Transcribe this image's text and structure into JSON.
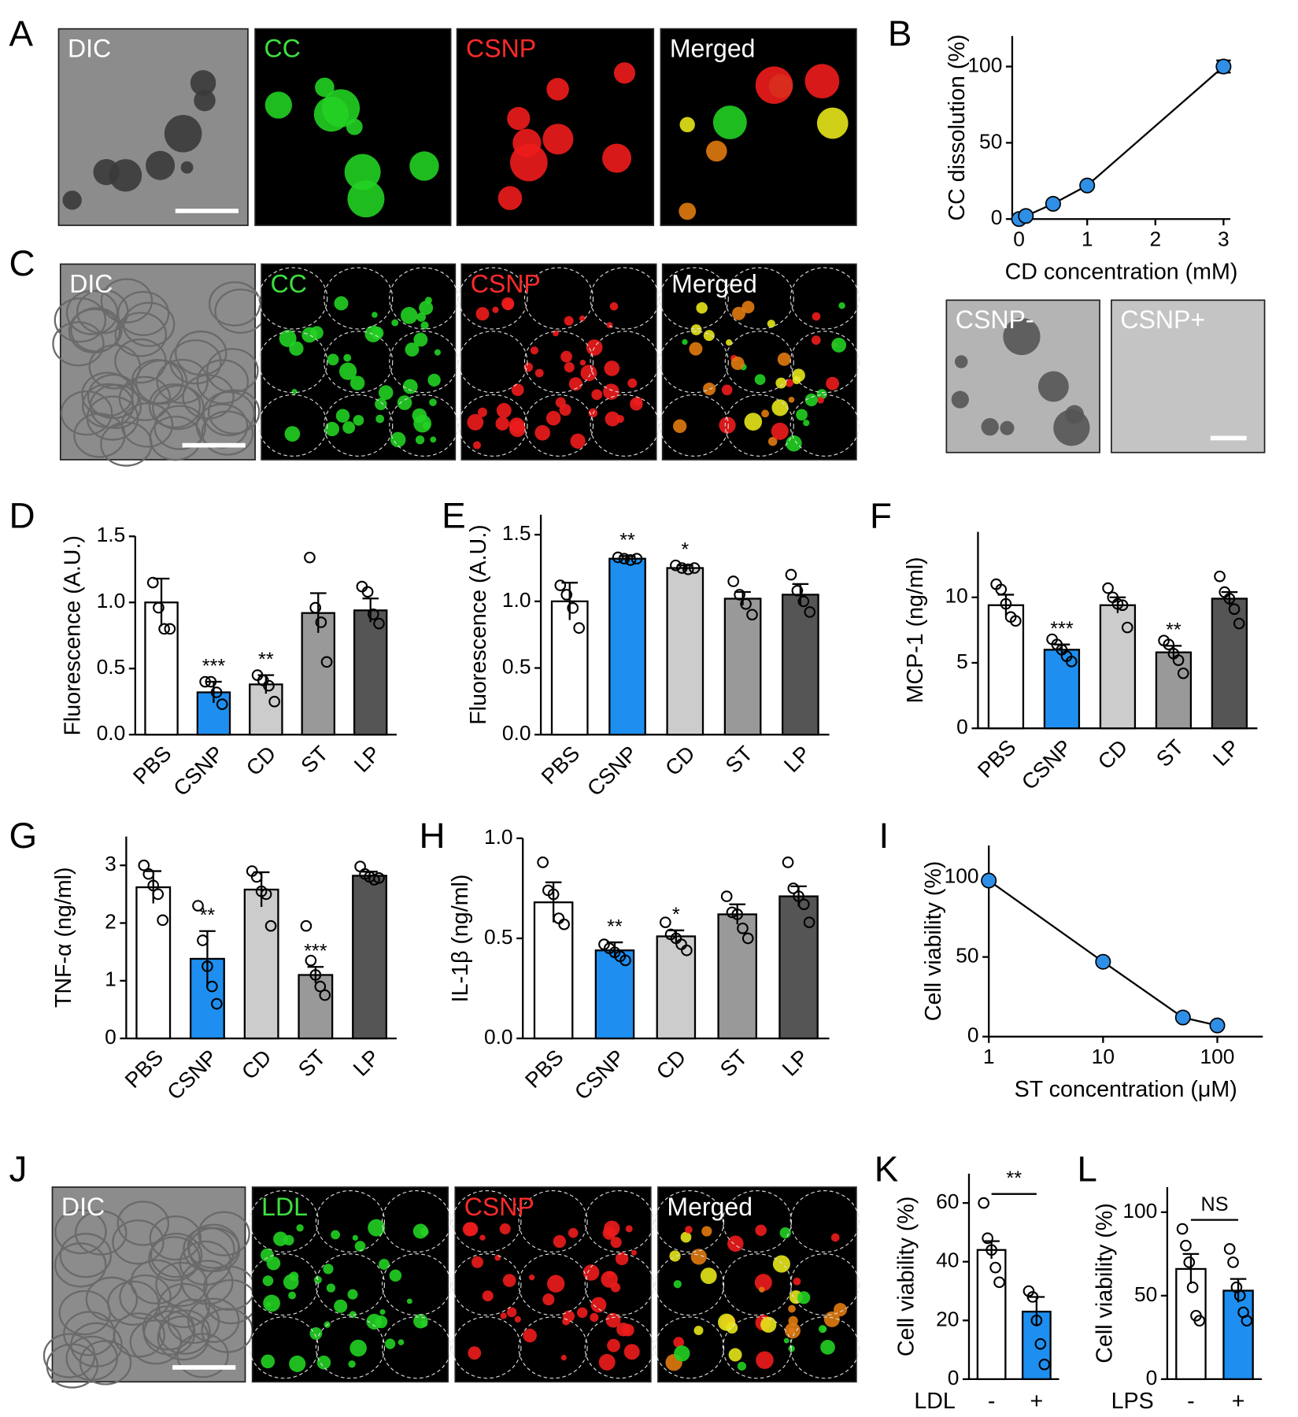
{
  "panel_labels": [
    "A",
    "B",
    "C",
    "D",
    "E",
    "F",
    "G",
    "H",
    "I",
    "J",
    "K",
    "L"
  ],
  "images": {
    "A": [
      "DIC",
      "CC",
      "CSNP",
      "Merged"
    ],
    "B": [
      "CSNP-",
      "CSNP+"
    ],
    "C": [
      "DIC",
      "CC",
      "CSNP",
      "Merged"
    ],
    "J": [
      "DIC",
      "LDL",
      "CSNP",
      "Merged"
    ]
  },
  "chart_data": [
    {
      "type": "line",
      "ylabel": "CC dissolution (%)",
      "xlabel": "CD concentration (mM)",
      "x": [
        0,
        0.1,
        0.5,
        1,
        3
      ],
      "values": [
        0,
        2,
        10,
        22,
        100
      ],
      "errors": [
        null,
        null,
        null,
        null,
        4
      ],
      "color": "#2f8fe6",
      "xlim": [
        -0.1,
        3.1
      ],
      "xticks": [
        0,
        1,
        2,
        3
      ],
      "ylim": [
        0,
        120
      ],
      "yticks": [
        0,
        50,
        100
      ]
    },
    {
      "type": "bar",
      "ylabel": "Fluorescence (A.U.)",
      "categories": [
        "PBS",
        "CSNP",
        "CD",
        "ST",
        "LP"
      ],
      "values": [
        1.0,
        0.32,
        0.38,
        0.92,
        0.94
      ],
      "errors": [
        0.18,
        0.08,
        0.07,
        0.15,
        0.09
      ],
      "points": [
        [
          1.15,
          0.96,
          0.8,
          0.8
        ],
        [
          0.4,
          0.4,
          0.32,
          0.23
        ],
        [
          0.45,
          0.41,
          0.37,
          0.25
        ],
        [
          1.34,
          0.96,
          0.85,
          0.55
        ],
        [
          1.12,
          1.08,
          0.91,
          0.84
        ]
      ],
      "significance": [
        null,
        "***",
        "**",
        null,
        null
      ],
      "colors": [
        "#ffffff",
        "#1e8ff0",
        "#cccccc",
        "#999999",
        "#555555"
      ],
      "ylim": [
        0,
        1.5
      ],
      "yticks": [
        {
          "value": 0,
          "label": "0.0"
        },
        0.5,
        {
          "value": 1,
          "label": "1.0"
        },
        1.5
      ]
    },
    {
      "type": "bar",
      "ylabel": "Fluorescence (A.U.)",
      "categories": [
        "PBS",
        "CSNP",
        "CD",
        "ST",
        "LP"
      ],
      "values": [
        1.0,
        1.32,
        1.25,
        1.02,
        1.05
      ],
      "errors": [
        0.14,
        0.02,
        0.02,
        0.05,
        0.08
      ],
      "points": [
        [
          1.12,
          1.05,
          0.95,
          0.8
        ],
        [
          1.33,
          1.32,
          1.31,
          1.32
        ],
        [
          1.27,
          1.25,
          1.24,
          1.25
        ],
        [
          1.15,
          1.05,
          0.98,
          0.9
        ],
        [
          1.2,
          1.08,
          1.0,
          0.92
        ]
      ],
      "significance": [
        null,
        "**",
        "*",
        null,
        null
      ],
      "colors": [
        "#ffffff",
        "#1e8ff0",
        "#cccccc",
        "#999999",
        "#555555"
      ],
      "ylim": [
        0,
        1.65
      ],
      "yticks": [
        {
          "value": 0,
          "label": "0.0"
        },
        0.5,
        {
          "value": 1,
          "label": "1.0"
        },
        1.5
      ]
    },
    {
      "type": "bar",
      "ylabel": "MCP-1 (ng/ml)",
      "categories": [
        "PBS",
        "CSNP",
        "CD",
        "ST",
        "LP"
      ],
      "values": [
        9.4,
        6.0,
        9.4,
        5.8,
        9.9
      ],
      "errors": [
        0.8,
        0.4,
        0.6,
        0.5,
        0.5
      ],
      "points": [
        [
          11,
          10.6,
          9.5,
          8.5,
          8.2
        ],
        [
          6.8,
          6.4,
          6.0,
          5.5,
          5.1
        ],
        [
          10.7,
          10.0,
          9.5,
          9.4,
          7.7
        ],
        [
          6.7,
          6.4,
          5.7,
          5.2,
          4.2
        ],
        [
          11.6,
          10.4,
          9.9,
          9.1,
          8.0
        ]
      ],
      "significance": [
        null,
        "***",
        null,
        "**",
        null
      ],
      "colors": [
        "#ffffff",
        "#1e8ff0",
        "#cccccc",
        "#999999",
        "#555555"
      ],
      "ylim": [
        0,
        15
      ],
      "yticks": [
        0,
        5,
        10
      ]
    },
    {
      "type": "bar",
      "ylabel": "TNF-α (ng/ml)",
      "categories": [
        "PBS",
        "CSNP",
        "CD",
        "ST",
        "LP"
      ],
      "values": [
        2.62,
        1.38,
        2.58,
        1.1,
        2.82
      ],
      "errors": [
        0.28,
        0.48,
        0.3,
        0.14,
        0.07
      ],
      "points": [
        [
          3.0,
          2.85,
          2.65,
          2.5,
          2.05
        ],
        [
          2.3,
          1.7,
          1.25,
          0.9,
          0.6
        ],
        [
          2.9,
          2.8,
          2.55,
          2.5,
          1.95
        ],
        [
          1.95,
          1.35,
          1.1,
          0.9,
          0.75
        ],
        [
          2.98,
          2.85,
          2.8,
          2.75,
          2.78
        ]
      ],
      "significance": [
        null,
        "**",
        null,
        "***",
        null
      ],
      "colors": [
        "#ffffff",
        "#1e8ff0",
        "#cccccc",
        "#999999",
        "#555555"
      ],
      "ylim": [
        0,
        3.5
      ],
      "yticks": [
        0,
        1,
        2,
        3
      ]
    },
    {
      "type": "bar",
      "ylabel": "IL-1β (ng/ml)",
      "categories": [
        "PBS",
        "CSNP",
        "CD",
        "ST",
        "LP"
      ],
      "values": [
        0.68,
        0.44,
        0.51,
        0.62,
        0.71
      ],
      "errors": [
        0.1,
        0.04,
        0.03,
        0.05,
        0.05
      ],
      "points": [
        [
          0.88,
          0.74,
          0.72,
          0.6,
          0.57
        ],
        [
          0.47,
          0.45,
          0.43,
          0.41,
          0.39
        ],
        [
          0.58,
          0.52,
          0.5,
          0.47,
          0.44
        ],
        [
          0.71,
          0.63,
          0.62,
          0.55,
          0.5
        ],
        [
          0.88,
          0.75,
          0.71,
          0.67,
          0.58
        ]
      ],
      "significance": [
        null,
        "**",
        "*",
        null,
        null
      ],
      "colors": [
        "#ffffff",
        "#1e8ff0",
        "#cccccc",
        "#999999",
        "#555555"
      ],
      "ylim": [
        0,
        1
      ],
      "yticks": [
        {
          "value": 0,
          "label": "0.0"
        },
        0.5,
        {
          "value": 1,
          "label": "1.0"
        }
      ]
    },
    {
      "type": "line",
      "ylabel": "Cell viability (%)",
      "xlabel": "ST concentration (μM)",
      "log_x": true,
      "x": [
        1,
        10,
        50,
        100
      ],
      "values": [
        98,
        47,
        12,
        7
      ],
      "color": "#2f8fe6",
      "xlim": [
        1,
        250
      ],
      "xticks": [
        1,
        10,
        100
      ],
      "ylim": [
        0,
        120
      ],
      "yticks": [
        0,
        50,
        100
      ]
    },
    {
      "type": "bar",
      "ylabel": "Cell viability (%)",
      "xlabel": "LDL",
      "categories": [
        "-",
        "+"
      ],
      "values": [
        44,
        23
      ],
      "errors": [
        3,
        5
      ],
      "points": [
        [
          60,
          48,
          44,
          38,
          33
        ],
        [
          30,
          28,
          20,
          12,
          5
        ]
      ],
      "bracket": "**",
      "colors": [
        "#ffffff",
        "#1e8ff0"
      ],
      "ylim": [
        0,
        70
      ],
      "yticks": [
        0,
        20,
        40,
        60
      ]
    },
    {
      "type": "bar",
      "ylabel": "Cell viability (%)",
      "xlabel": "LPS",
      "categories": [
        "-",
        "+"
      ],
      "values": [
        66,
        53
      ],
      "errors": [
        9,
        7
      ],
      "points": [
        [
          90,
          80,
          70,
          55,
          38,
          35
        ],
        [
          78,
          70,
          55,
          50,
          40,
          35
        ]
      ],
      "bracket": "NS",
      "colors": [
        "#ffffff",
        "#1e8ff0"
      ],
      "ylim": [
        0,
        115
      ],
      "yticks": [
        0,
        50,
        100
      ]
    }
  ]
}
